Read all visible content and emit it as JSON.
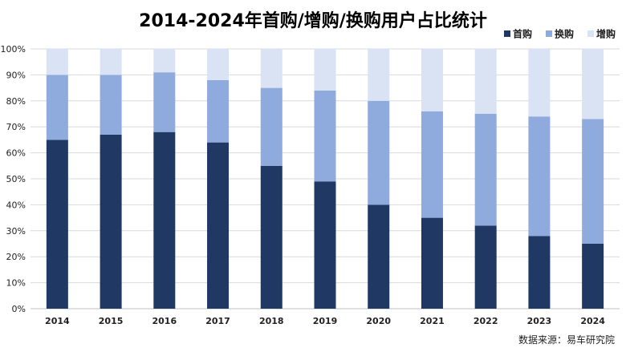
{
  "chart_data": {
    "type": "bar",
    "stacked": true,
    "title": "2014-2024年首购/增购/换购用户占比统计",
    "categories": [
      "2014",
      "2015",
      "2016",
      "2017",
      "2018",
      "2019",
      "2020",
      "2021",
      "2022",
      "2023",
      "2024"
    ],
    "series": [
      {
        "name": "首购",
        "color": "#1f3864",
        "values": [
          65,
          67,
          68,
          64,
          55,
          49,
          40,
          35,
          32,
          28,
          25
        ]
      },
      {
        "name": "换购",
        "color": "#8faadc",
        "values": [
          25,
          23,
          23,
          24,
          30,
          35,
          40,
          41,
          43,
          46,
          48
        ]
      },
      {
        "name": "增购",
        "color": "#dae3f3",
        "values": [
          10,
          10,
          9,
          12,
          15,
          16,
          20,
          24,
          25,
          26,
          27
        ]
      }
    ],
    "ylim": [
      0,
      100
    ],
    "yticks": [
      "0%",
      "10%",
      "20%",
      "30%",
      "40%",
      "50%",
      "60%",
      "70%",
      "80%",
      "90%",
      "100%"
    ],
    "legend_position": "top-right",
    "source": "数据来源：易车研究院"
  }
}
